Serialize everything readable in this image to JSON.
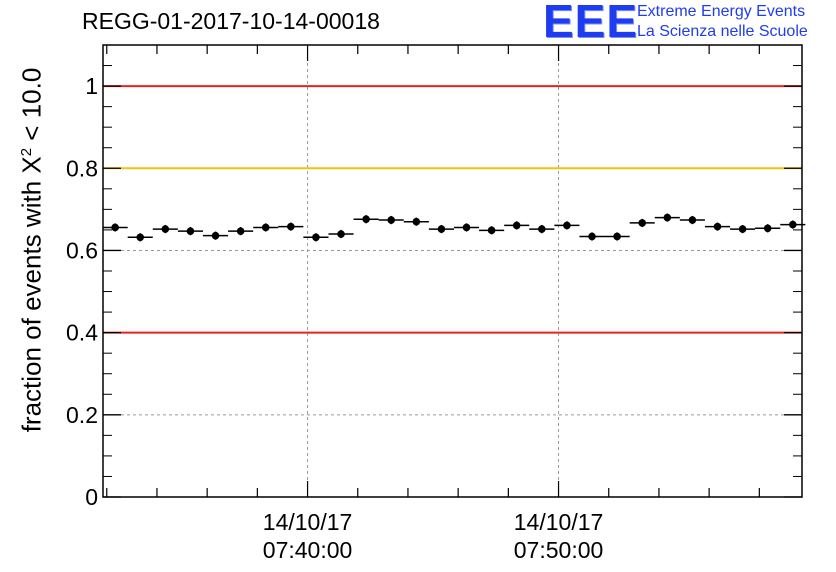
{
  "title": "REGG-01-2017-10-14-00018",
  "logo": {
    "mark": "EEE",
    "line1": "Extreme Energy Events",
    "line2": "La Scienza nelle Scuole",
    "color": "#1f3df0"
  },
  "chart_data": {
    "type": "scatter",
    "title": "REGG-01-2017-10-14-00018",
    "ylabel": {
      "prefix": "fraction of events with X",
      "superscript": "2",
      "suffix": " < 10.0"
    },
    "ylim": [
      0,
      1.1
    ],
    "yticks": [
      "0",
      "0.2",
      "0.4",
      "0.6",
      "0.8",
      "1"
    ],
    "xlim": [
      "07:31:51",
      "07:59:42"
    ],
    "xticks": [
      {
        "date": "14/10/17",
        "time": "07:40:00",
        "value": "07:40:00"
      },
      {
        "date": "14/10/17",
        "time": "07:50:00",
        "value": "07:50:00"
      }
    ],
    "grid": true,
    "reference_lines": [
      {
        "y": 1.0,
        "color": "#e8221e"
      },
      {
        "y": 0.8,
        "color": "#f4c20d"
      },
      {
        "y": 0.4,
        "color": "#e8221e"
      }
    ],
    "bin_width_seconds": 60,
    "points": [
      {
        "x": "07:32:20",
        "y": 0.656
      },
      {
        "x": "07:33:20",
        "y": 0.632
      },
      {
        "x": "07:34:20",
        "y": 0.652
      },
      {
        "x": "07:35:20",
        "y": 0.647
      },
      {
        "x": "07:36:20",
        "y": 0.636
      },
      {
        "x": "07:37:20",
        "y": 0.647
      },
      {
        "x": "07:38:20",
        "y": 0.656
      },
      {
        "x": "07:39:20",
        "y": 0.658
      },
      {
        "x": "07:40:20",
        "y": 0.632
      },
      {
        "x": "07:41:20",
        "y": 0.64
      },
      {
        "x": "07:42:20",
        "y": 0.676
      },
      {
        "x": "07:43:20",
        "y": 0.674
      },
      {
        "x": "07:44:20",
        "y": 0.67
      },
      {
        "x": "07:45:20",
        "y": 0.652
      },
      {
        "x": "07:46:20",
        "y": 0.656
      },
      {
        "x": "07:47:20",
        "y": 0.649
      },
      {
        "x": "07:48:20",
        "y": 0.661
      },
      {
        "x": "07:49:20",
        "y": 0.652
      },
      {
        "x": "07:50:20",
        "y": 0.661
      },
      {
        "x": "07:51:20",
        "y": 0.634
      },
      {
        "x": "07:52:20",
        "y": 0.634
      },
      {
        "x": "07:53:20",
        "y": 0.667
      },
      {
        "x": "07:54:20",
        "y": 0.68
      },
      {
        "x": "07:55:20",
        "y": 0.674
      },
      {
        "x": "07:56:20",
        "y": 0.658
      },
      {
        "x": "07:57:20",
        "y": 0.652
      },
      {
        "x": "07:58:20",
        "y": 0.654
      },
      {
        "x": "07:59:20",
        "y": 0.663
      }
    ],
    "y_error": 0.01
  }
}
